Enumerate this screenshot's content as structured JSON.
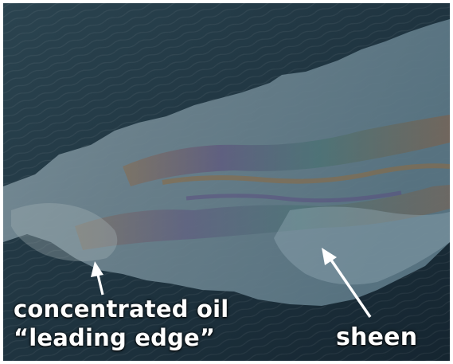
{
  "photo": {
    "subject": "aerial view of oil slick on ocean surface",
    "water_color": "#1f3440",
    "slick_color": "#6f8896",
    "sheen_colors": [
      "#7a5a3c",
      "#5b4a7a",
      "#3f6e6a",
      "#9aa8b0"
    ]
  },
  "labels": {
    "concentrated_oil_line1": "concentrated oil",
    "concentrated_oil_line2": "“leading edge”",
    "sheen": "sheen"
  },
  "arrows": {
    "oil_arrow_color": "#ffffff",
    "sheen_arrow_color": "#ffffff"
  }
}
